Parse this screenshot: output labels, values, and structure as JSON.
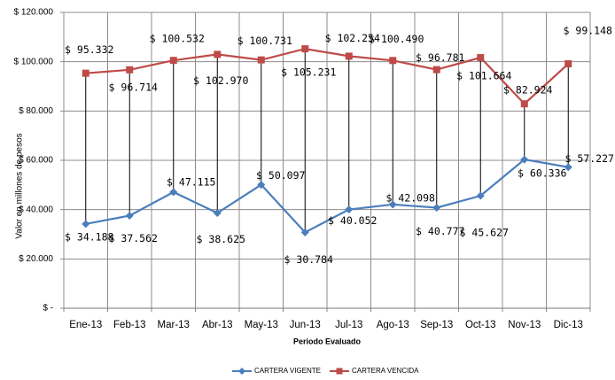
{
  "chart_data": {
    "type": "line",
    "y_label": "Valor en millones de pesos",
    "x_label": "Periodo Evaluado",
    "categories": [
      "Ene-13",
      "Feb-13",
      "Mar-13",
      "Abr-13",
      "May-13",
      "Jun-13",
      "Jul-13",
      "Ago-13",
      "Sep-13",
      "Oct-13",
      "Nov-13",
      "Dic-13"
    ],
    "series": [
      {
        "name": "CARTERA VIGENTE",
        "color": "#4a7ebb",
        "marker": "diamond",
        "values": [
          34188,
          37562,
          47115,
          38625,
          50097,
          30784,
          40052,
          42098,
          40777,
          45627,
          60336,
          57227
        ],
        "value_labels": [
          "$ 34.188",
          "$ 37.562",
          "$ 47.115",
          "$ 38.625",
          "$ 50.097",
          "$ 30.784",
          "$ 40.052",
          "$ 42.098",
          "$ 40.777",
          "$ 45.627",
          "$ 60.336",
          "$ 57.227"
        ]
      },
      {
        "name": "CARTERA VENCIDA",
        "color": "#be4b48",
        "marker": "square",
        "values": [
          95332,
          96714,
          100532,
          102970,
          100731,
          105231,
          102254,
          100490,
          96781,
          101664,
          82924,
          99148
        ],
        "value_labels": [
          "$ 95.332",
          "$ 96.714",
          "$ 100.532",
          "$ 102.970",
          "$ 100.731",
          "$ 105.231",
          "$ 102.254",
          "$ 100.490",
          "$ 96.781",
          "$ 101.664",
          "$ 82.924",
          "$ 99.148"
        ]
      }
    ],
    "ylim": [
      0,
      120000
    ],
    "yticks": [
      {
        "value": 0,
        "label": "$ -"
      },
      {
        "value": 20000,
        "label": "$ 20.000"
      },
      {
        "value": 40000,
        "label": "$ 40.000"
      },
      {
        "value": 60000,
        "label": "$ 60.000"
      },
      {
        "value": 80000,
        "label": "$ 80.000"
      },
      {
        "value": 100000,
        "label": "$ 100.000"
      },
      {
        "value": 120000,
        "label": "$ 120.000"
      }
    ],
    "grid": true,
    "drop_lines": true,
    "legend": "bottom"
  }
}
